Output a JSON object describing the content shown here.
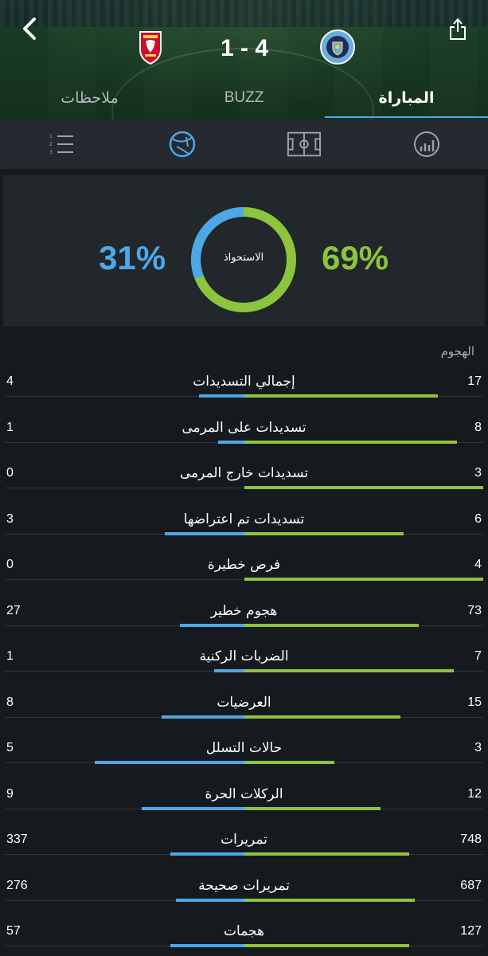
{
  "colors": {
    "away": "#4ea7e8",
    "home": "#8dc43d"
  },
  "header": {
    "score": "1 - 4",
    "away_crest": "liverpool-crest-icon",
    "home_crest": "manchester-city-crest-icon"
  },
  "tabs": [
    {
      "label": "ملاحظات",
      "active": false
    },
    {
      "label": "BUZZ",
      "active": false
    },
    {
      "label": "المباراة",
      "active": true
    }
  ],
  "icon_bar": [
    "lineup-list-icon",
    "ball-icon",
    "pitch-icon",
    "stats-chart-icon"
  ],
  "possession": {
    "label": "الاستحواذ",
    "away": "31%",
    "home": "69%",
    "away_fraction": 0.31
  },
  "section_title": "الهجوم",
  "stats": [
    {
      "label": "إجمالي التسديدات",
      "left": "4",
      "right": "17",
      "l": 4,
      "r": 17
    },
    {
      "label": "تسديدات على المرمى",
      "left": "1",
      "right": "8",
      "l": 1,
      "r": 8
    },
    {
      "label": "تسديدات خارج المرمى",
      "left": "0",
      "right": "3",
      "l": 0,
      "r": 3
    },
    {
      "label": "تسديدات تم اعتراضها",
      "left": "3",
      "right": "6",
      "l": 3,
      "r": 6
    },
    {
      "label": "فرص خطيرة",
      "left": "0",
      "right": "4",
      "l": 0,
      "r": 4
    },
    {
      "label": "هجوم خطير",
      "left": "27",
      "right": "73",
      "l": 27,
      "r": 73
    },
    {
      "label": "الضربات الركنية",
      "left": "1",
      "right": "7",
      "l": 1,
      "r": 7
    },
    {
      "label": "العرضيات",
      "left": "8",
      "right": "15",
      "l": 8,
      "r": 15
    },
    {
      "label": "حالات التسلل",
      "left": "5",
      "right": "3",
      "l": 5,
      "r": 3
    },
    {
      "label": "الركلات الحرة",
      "left": "9",
      "right": "12",
      "l": 9,
      "r": 12
    },
    {
      "label": "تمريرات",
      "left": "337",
      "right": "748",
      "l": 337,
      "r": 748
    },
    {
      "label": "تمريرات صحيحة",
      "left": "276",
      "right": "687",
      "l": 276,
      "r": 687
    },
    {
      "label": "هجمات",
      "left": "57",
      "right": "127",
      "l": 57,
      "r": 127
    }
  ]
}
